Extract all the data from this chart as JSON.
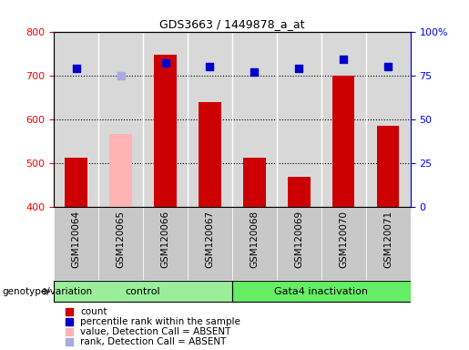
{
  "title": "GDS3663 / 1449878_a_at",
  "samples": [
    "GSM120064",
    "GSM120065",
    "GSM120066",
    "GSM120067",
    "GSM120068",
    "GSM120069",
    "GSM120070",
    "GSM120071"
  ],
  "count_values": [
    512,
    null,
    748,
    638,
    511,
    468,
    700,
    585
  ],
  "count_absent_values": [
    null,
    565,
    null,
    null,
    null,
    null,
    null,
    null
  ],
  "percentile_values": [
    79,
    null,
    82,
    80,
    77,
    79,
    84,
    80
  ],
  "percentile_absent_values": [
    null,
    75,
    null,
    null,
    null,
    null,
    null,
    null
  ],
  "ylim_left": [
    400,
    800
  ],
  "ylim_right": [
    0,
    100
  ],
  "yticks_left": [
    400,
    500,
    600,
    700,
    800
  ],
  "yticks_right": [
    0,
    25,
    50,
    75,
    100
  ],
  "ytick_right_labels": [
    "0",
    "25",
    "50",
    "75",
    "100%"
  ],
  "bar_color_red": "#cc0000",
  "bar_color_pink": "#ffb3b3",
  "dot_color_blue": "#0000cc",
  "dot_color_lightblue": "#aaaadd",
  "groups": [
    {
      "label": "control",
      "start": 0,
      "end": 3,
      "color": "#99ee99"
    },
    {
      "label": "Gata4 inactivation",
      "start": 4,
      "end": 7,
      "color": "#66ee66"
    }
  ],
  "legend_items": [
    {
      "label": "count",
      "color": "#cc0000"
    },
    {
      "label": "percentile rank within the sample",
      "color": "#0000cc"
    },
    {
      "label": "value, Detection Call = ABSENT",
      "color": "#ffb3b3"
    },
    {
      "label": "rank, Detection Call = ABSENT",
      "color": "#aaaadd"
    }
  ],
  "bar_width": 0.5,
  "dot_size": 40,
  "axis_bg": "#d8d8d8",
  "xtick_bg": "#c8c8c8",
  "genotype_label": "genotype/variation"
}
